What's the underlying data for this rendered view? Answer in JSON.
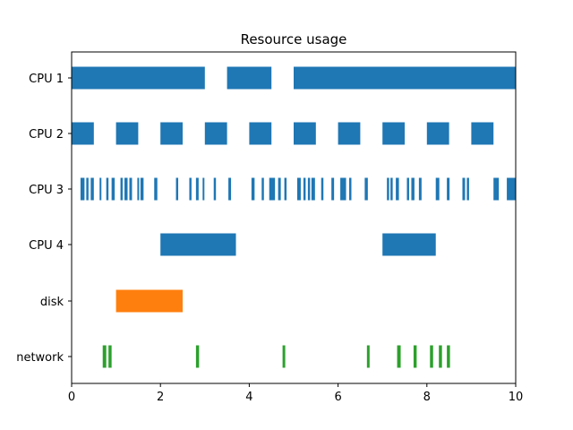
{
  "chart_data": {
    "type": "broken_barh",
    "title": "Resource usage",
    "xlabel": "",
    "ylabel": "",
    "xlim": [
      0,
      10
    ],
    "xticks": [
      "0",
      "2",
      "4",
      "6",
      "8",
      "10"
    ],
    "grid": false,
    "colors": {
      "cpu": "#1f77b4",
      "disk": "#ff7f0e",
      "network": "#2ca02c"
    },
    "series": [
      {
        "category": "CPU 1",
        "color_key": "cpu",
        "segments": [
          [
            0,
            3
          ],
          [
            3.5,
            1
          ],
          [
            5,
            5
          ]
        ]
      },
      {
        "category": "CPU 2",
        "color_key": "cpu",
        "segments": [
          [
            0,
            0.5
          ],
          [
            1,
            0.5
          ],
          [
            2,
            0.5
          ],
          [
            3,
            0.5
          ],
          [
            4,
            0.5
          ],
          [
            5,
            0.5
          ],
          [
            6,
            0.5
          ],
          [
            7,
            0.5
          ],
          [
            8,
            0.5
          ],
          [
            9,
            0.5
          ]
        ]
      },
      {
        "category": "CPU 3",
        "color_key": "cpu",
        "segments": [
          [
            0.2,
            0.09
          ],
          [
            0.33,
            0.05
          ],
          [
            0.43,
            0.07
          ],
          [
            0.63,
            0.04
          ],
          [
            0.78,
            0.05
          ],
          [
            0.9,
            0.07
          ],
          [
            1.1,
            0.05
          ],
          [
            1.19,
            0.07
          ],
          [
            1.3,
            0.06
          ],
          [
            1.48,
            0.04
          ],
          [
            1.55,
            0.07
          ],
          [
            1.86,
            0.07
          ],
          [
            2.35,
            0.05
          ],
          [
            2.65,
            0.05
          ],
          [
            2.8,
            0.06
          ],
          [
            2.95,
            0.04
          ],
          [
            3.2,
            0.05
          ],
          [
            3.53,
            0.06
          ],
          [
            4.05,
            0.07
          ],
          [
            4.28,
            0.05
          ],
          [
            4.45,
            0.13
          ],
          [
            4.65,
            0.06
          ],
          [
            4.79,
            0.05
          ],
          [
            5.08,
            0.08
          ],
          [
            5.22,
            0.05
          ],
          [
            5.32,
            0.05
          ],
          [
            5.4,
            0.08
          ],
          [
            5.62,
            0.05
          ],
          [
            5.85,
            0.06
          ],
          [
            6.05,
            0.13
          ],
          [
            6.25,
            0.05
          ],
          [
            6.6,
            0.07
          ],
          [
            7.1,
            0.05
          ],
          [
            7.18,
            0.05
          ],
          [
            7.3,
            0.07
          ],
          [
            7.55,
            0.05
          ],
          [
            7.65,
            0.07
          ],
          [
            7.82,
            0.06
          ],
          [
            8.2,
            0.08
          ],
          [
            8.45,
            0.06
          ],
          [
            8.8,
            0.06
          ],
          [
            8.9,
            0.05
          ],
          [
            9.5,
            0.12
          ],
          [
            9.8,
            0.18
          ],
          [
            9.97,
            0.04
          ]
        ]
      },
      {
        "category": "CPU 4",
        "color_key": "cpu",
        "segments": [
          [
            2,
            1.7
          ],
          [
            7,
            1.2
          ]
        ]
      },
      {
        "category": "disk",
        "color_key": "disk",
        "segments": [
          [
            1,
            1.5
          ]
        ]
      },
      {
        "category": "network",
        "color_key": "network",
        "segments": [
          [
            0.7,
            0.08
          ],
          [
            0.83,
            0.07
          ],
          [
            2.8,
            0.07
          ],
          [
            4.75,
            0.06
          ],
          [
            6.65,
            0.06
          ],
          [
            7.33,
            0.08
          ],
          [
            7.7,
            0.07
          ],
          [
            8.07,
            0.07
          ],
          [
            8.27,
            0.07
          ],
          [
            8.45,
            0.07
          ]
        ]
      }
    ]
  }
}
